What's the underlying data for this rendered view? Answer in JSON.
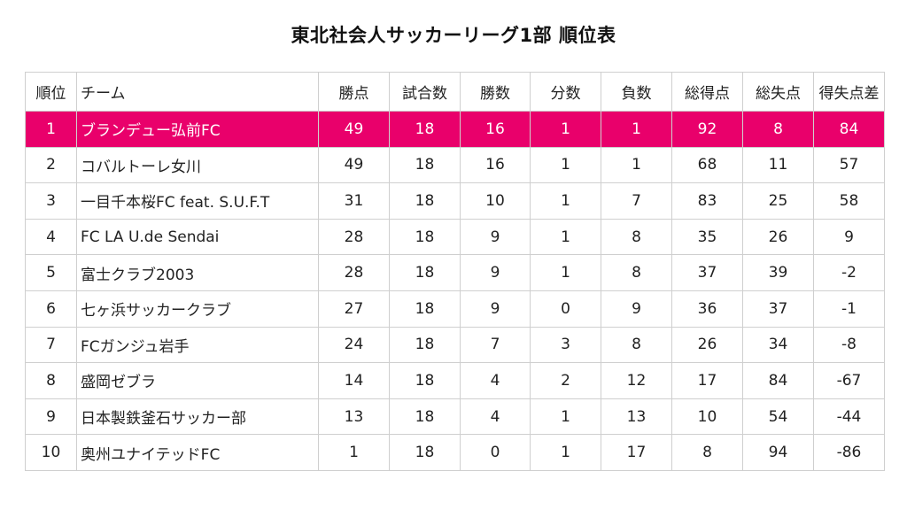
{
  "title": "東北社会人サッカーリーグ1部 順位表",
  "highlight_color": "#e9006b",
  "headers": [
    "順位",
    "チーム",
    "勝点",
    "試合数",
    "勝数",
    "分数",
    "負数",
    "総得点",
    "総失点",
    "得失点差"
  ],
  "rows": [
    {
      "rank": "1",
      "team": "ブランデュー弘前FC",
      "points": "49",
      "played": "18",
      "wins": "16",
      "draws": "1",
      "losses": "1",
      "gf": "92",
      "ga": "8",
      "gd": "84",
      "highlighted": true
    },
    {
      "rank": "2",
      "team": "コバルトーレ女川",
      "points": "49",
      "played": "18",
      "wins": "16",
      "draws": "1",
      "losses": "1",
      "gf": "68",
      "ga": "11",
      "gd": "57"
    },
    {
      "rank": "3",
      "team": "一目千本桜FC feat. S.U.F.T",
      "points": "31",
      "played": "18",
      "wins": "10",
      "draws": "1",
      "losses": "7",
      "gf": "83",
      "ga": "25",
      "gd": "58"
    },
    {
      "rank": "4",
      "team": "FC LA U.de Sendai",
      "points": "28",
      "played": "18",
      "wins": "9",
      "draws": "1",
      "losses": "8",
      "gf": "35",
      "ga": "26",
      "gd": "9"
    },
    {
      "rank": "5",
      "team": "富士クラブ2003",
      "points": "28",
      "played": "18",
      "wins": "9",
      "draws": "1",
      "losses": "8",
      "gf": "37",
      "ga": "39",
      "gd": "-2"
    },
    {
      "rank": "6",
      "team": "七ヶ浜サッカークラブ",
      "points": "27",
      "played": "18",
      "wins": "9",
      "draws": "0",
      "losses": "9",
      "gf": "36",
      "ga": "37",
      "gd": "-1"
    },
    {
      "rank": "7",
      "team": "FCガンジュ岩手",
      "points": "24",
      "played": "18",
      "wins": "7",
      "draws": "3",
      "losses": "8",
      "gf": "26",
      "ga": "34",
      "gd": "-8"
    },
    {
      "rank": "8",
      "team": "盛岡ゼブラ",
      "points": "14",
      "played": "18",
      "wins": "4",
      "draws": "2",
      "losses": "12",
      "gf": "17",
      "ga": "84",
      "gd": "-67"
    },
    {
      "rank": "9",
      "team": "日本製鉄釜石サッカー部",
      "points": "13",
      "played": "18",
      "wins": "4",
      "draws": "1",
      "losses": "13",
      "gf": "10",
      "ga": "54",
      "gd": "-44"
    },
    {
      "rank": "10",
      "team": "奥州ユナイテッドFC",
      "points": "1",
      "played": "18",
      "wins": "0",
      "draws": "1",
      "losses": "17",
      "gf": "8",
      "ga": "94",
      "gd": "-86"
    }
  ]
}
